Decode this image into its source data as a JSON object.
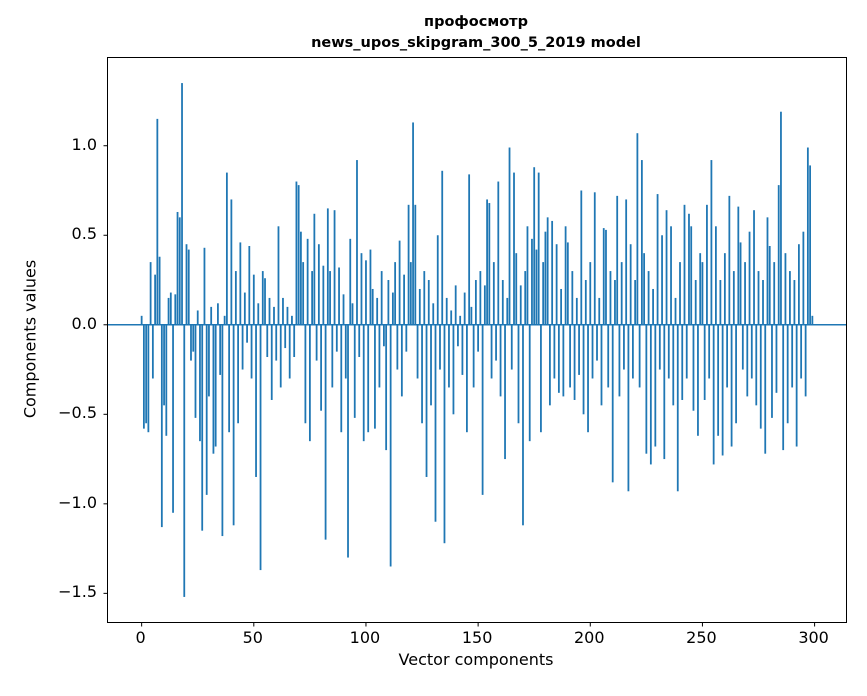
{
  "title": {
    "line1": "профосмотр",
    "line2": "news_upos_skipgram_300_5_2019 model"
  },
  "chart_data": {
    "type": "bar",
    "title": "профосмотр\nnews_upos_skipgram_300_5_2019 model",
    "xlabel": "Vector components",
    "ylabel": "Components values",
    "xlim": [
      -15,
      314
    ],
    "ylim": [
      -1.66,
      1.49
    ],
    "x_ticks": [
      0,
      50,
      100,
      150,
      200,
      250,
      300
    ],
    "y_ticks": [
      1.0,
      0.5,
      0.0,
      -0.5,
      -1.0,
      -1.5
    ],
    "bar_color": "#1f77b4",
    "grid": false,
    "legend": null,
    "x_start": 0,
    "values": [
      0.05,
      -0.58,
      -0.55,
      -0.6,
      0.35,
      -0.3,
      0.28,
      1.15,
      0.38,
      -1.13,
      -0.45,
      -0.62,
      0.15,
      0.18,
      -1.05,
      0.17,
      0.63,
      0.6,
      1.35,
      -1.52,
      0.45,
      0.42,
      -0.2,
      -0.15,
      -0.52,
      0.08,
      -0.65,
      -1.15,
      0.43,
      -0.95,
      -0.4,
      0.1,
      -0.72,
      -0.68,
      0.12,
      -0.28,
      -1.18,
      0.05,
      0.85,
      -0.6,
      0.7,
      -1.12,
      0.3,
      -0.55,
      0.46,
      -0.25,
      0.18,
      -0.1,
      0.44,
      -0.3,
      0.28,
      -0.85,
      0.12,
      -1.37,
      0.3,
      0.26,
      -0.18,
      0.15,
      -0.42,
      0.1,
      -0.2,
      0.55,
      -0.35,
      0.15,
      -0.13,
      0.1,
      -0.3,
      0.05,
      -0.18,
      0.8,
      0.78,
      0.52,
      0.35,
      -0.55,
      0.48,
      -0.65,
      0.3,
      0.62,
      -0.2,
      0.45,
      -0.48,
      0.33,
      -1.2,
      0.65,
      0.3,
      -0.35,
      0.64,
      -0.15,
      0.32,
      -0.6,
      0.17,
      -0.3,
      -1.3,
      0.48,
      0.12,
      -0.52,
      0.92,
      -0.18,
      0.4,
      -0.65,
      0.36,
      -0.6,
      0.42,
      0.2,
      -0.58,
      0.15,
      -0.35,
      0.3,
      -0.12,
      -0.7,
      0.25,
      -1.35,
      0.18,
      0.35,
      -0.25,
      0.47,
      -0.4,
      0.28,
      -0.15,
      0.67,
      0.35,
      1.13,
      0.67,
      -0.3,
      0.2,
      -0.55,
      0.3,
      -0.85,
      0.25,
      -0.45,
      0.12,
      -1.1,
      0.5,
      -0.25,
      0.86,
      -1.22,
      0.15,
      -0.35,
      0.08,
      -0.5,
      0.22,
      -0.12,
      0.05,
      -0.28,
      0.18,
      -0.6,
      0.84,
      0.1,
      -0.35,
      0.25,
      -0.15,
      0.3,
      -0.95,
      0.22,
      0.7,
      0.68,
      -0.3,
      0.35,
      -0.2,
      0.8,
      -0.4,
      0.25,
      -0.75,
      0.15,
      0.99,
      -0.25,
      0.85,
      0.4,
      -0.55,
      0.22,
      -1.12,
      0.3,
      0.55,
      -0.65,
      0.48,
      0.88,
      0.42,
      0.85,
      -0.6,
      0.35,
      0.52,
      0.6,
      -0.45,
      0.58,
      -0.3,
      0.45,
      -0.38,
      0.2,
      -0.4,
      0.55,
      0.46,
      -0.35,
      0.3,
      -0.42,
      0.15,
      -0.28,
      0.75,
      -0.5,
      0.25,
      -0.6,
      0.35,
      -0.3,
      0.74,
      -0.2,
      0.15,
      -0.45,
      0.54,
      0.53,
      -0.35,
      0.3,
      -0.88,
      0.25,
      0.72,
      -0.4,
      0.35,
      -0.25,
      0.7,
      -0.93,
      0.45,
      -0.3,
      0.25,
      1.07,
      -0.35,
      0.92,
      0.4,
      -0.72,
      0.3,
      -0.78,
      0.2,
      -0.68,
      0.73,
      -0.25,
      0.5,
      -0.75,
      0.64,
      -0.3,
      0.55,
      -0.45,
      0.15,
      -0.93,
      0.35,
      -0.42,
      0.67,
      -0.3,
      0.62,
      0.55,
      -0.48,
      0.25,
      -0.62,
      0.4,
      0.35,
      -0.42,
      0.67,
      -0.3,
      0.92,
      -0.78,
      0.55,
      -0.62,
      0.25,
      -0.73,
      0.4,
      -0.35,
      0.72,
      -0.68,
      0.3,
      -0.55,
      0.66,
      0.46,
      -0.25,
      0.35,
      -0.4,
      0.52,
      -0.3,
      0.64,
      -0.45,
      0.3,
      -0.58,
      0.25,
      -0.72,
      0.6,
      0.44,
      -0.52,
      0.35,
      -0.38,
      0.78,
      1.19,
      -0.7,
      0.4,
      -0.55,
      0.3,
      -0.35,
      0.25,
      -0.68,
      0.45,
      -0.3,
      0.52,
      -0.4,
      0.99,
      0.89,
      0.05
    ]
  }
}
